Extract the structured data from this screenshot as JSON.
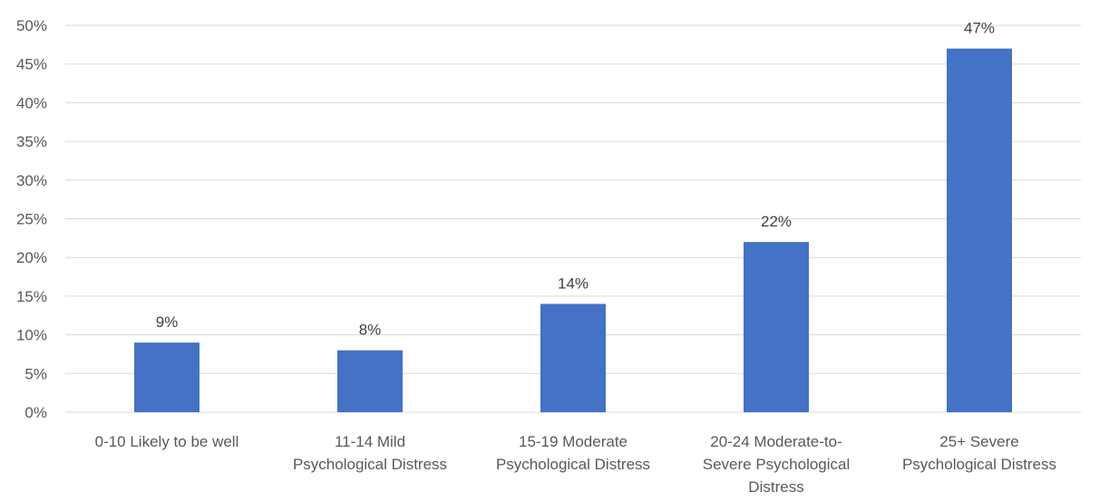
{
  "chart_data": {
    "type": "bar",
    "categories": [
      [
        "0-10 Likely to be well"
      ],
      [
        "11-14 Mild",
        "Psychological Distress"
      ],
      [
        "15-19 Moderate",
        "Psychological Distress"
      ],
      [
        "20-24 Moderate-to-",
        "Severe Psychological",
        "Distress"
      ],
      [
        "25+ Severe",
        "Psychological Distress"
      ]
    ],
    "values": [
      9,
      8,
      14,
      22,
      47
    ],
    "data_labels": [
      "9%",
      "8%",
      "14%",
      "22%",
      "47%"
    ],
    "y_ticks": [
      "0%",
      "5%",
      "10%",
      "15%",
      "20%",
      "25%",
      "30%",
      "35%",
      "40%",
      "45%",
      "50%"
    ],
    "ylim": [
      0,
      50
    ],
    "title": "",
    "xlabel": "",
    "ylabel": "",
    "grid": true,
    "legend": "none",
    "bar_color": "#4472c4"
  }
}
